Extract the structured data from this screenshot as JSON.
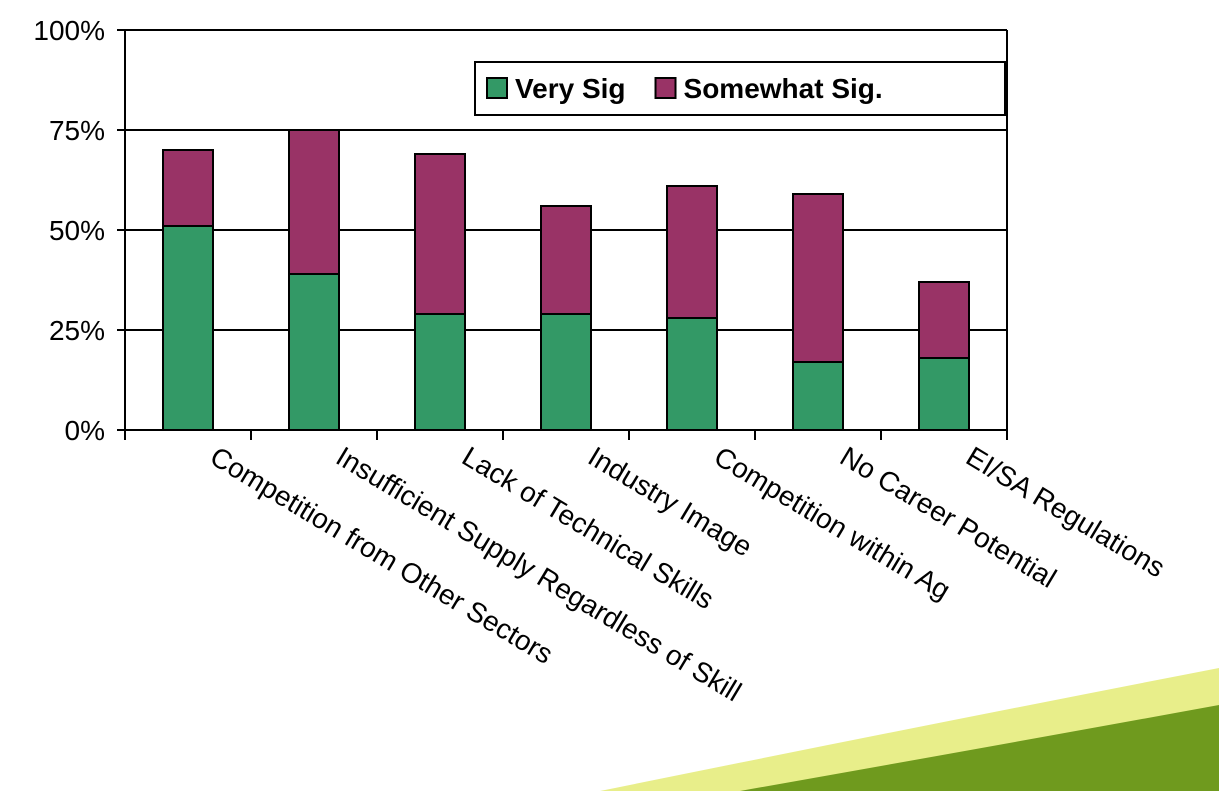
{
  "chart_data": {
    "type": "bar",
    "stacked": true,
    "categories": [
      "Competition from Other Sectors",
      "Insufficient Supply Regardless of Skill",
      "Lack of Technical Skills",
      "Industry Image",
      "Competition within Ag",
      "No Career Potential",
      "EI/SA Regulations"
    ],
    "series": [
      {
        "name": "Very Sig",
        "color": "#339966",
        "values": [
          51,
          39,
          29,
          29,
          28,
          17,
          18
        ]
      },
      {
        "name": "Somewhat Sig.",
        "color": "#993366",
        "values": [
          19,
          36,
          40,
          27,
          33,
          42,
          19
        ]
      }
    ],
    "ylim": [
      0,
      100
    ],
    "yticks": [
      {
        "value": 0,
        "label": "0%"
      },
      {
        "value": 25,
        "label": "25%"
      },
      {
        "value": 50,
        "label": "50%"
      },
      {
        "value": 75,
        "label": "75%"
      },
      {
        "value": 100,
        "label": "100%"
      }
    ],
    "grid": true,
    "legend": "top-right"
  }
}
